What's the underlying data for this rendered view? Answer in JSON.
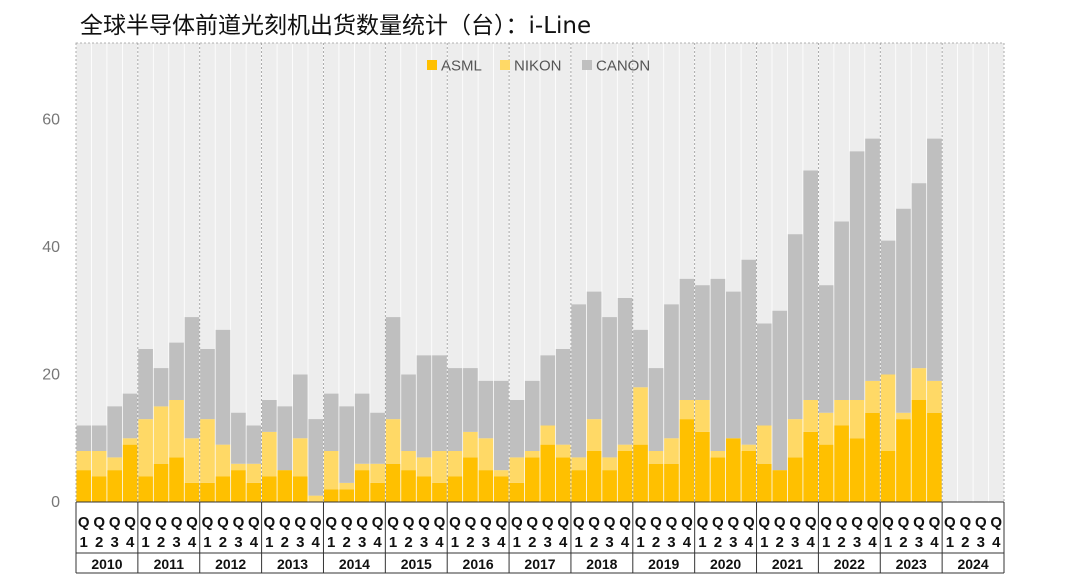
{
  "title": "全球半导体前道光刻机出货数量统计（台）：i-Line",
  "colors": {
    "asml": "#FFC000",
    "nikon": "#FFD966",
    "canon": "#BFBFBF",
    "background_band": "#EDEDED"
  },
  "chart_data": {
    "type": "bar",
    "stacked": true,
    "title": "全球半导体前道光刻机出货数量统计（台）：i-Line",
    "years": [
      "2010",
      "2011",
      "2012",
      "2013",
      "2014",
      "2015",
      "2016",
      "2017",
      "2018",
      "2019",
      "2020",
      "2021",
      "2022",
      "2023",
      "2024"
    ],
    "quarters": [
      "1",
      "2",
      "3",
      "4"
    ],
    "quarter_prefix": "Q",
    "y_ticks": [
      0,
      20,
      40,
      60
    ],
    "ylim": [
      0,
      72
    ],
    "legend": "top-center",
    "grid": false,
    "series": [
      {
        "name": "ASML",
        "color": "#FFC000",
        "values": [
          5,
          4,
          5,
          9,
          4,
          6,
          7,
          3,
          3,
          4,
          5,
          3,
          4,
          5,
          4,
          0,
          2,
          2,
          5,
          3,
          6,
          5,
          4,
          3,
          4,
          7,
          5,
          4,
          3,
          7,
          9,
          7,
          5,
          8,
          5,
          8,
          9,
          6,
          6,
          13,
          11,
          7,
          10,
          8,
          6,
          5,
          7,
          11,
          9,
          12,
          10,
          14,
          8,
          13,
          16,
          14,
          null,
          null,
          null,
          null
        ]
      },
      {
        "name": "NIKON",
        "color": "#FFD966",
        "values": [
          3,
          4,
          2,
          1,
          9,
          9,
          9,
          7,
          10,
          5,
          1,
          3,
          7,
          0,
          6,
          1,
          6,
          1,
          1,
          3,
          7,
          3,
          3,
          5,
          4,
          4,
          5,
          1,
          4,
          1,
          3,
          2,
          2,
          5,
          2,
          1,
          9,
          2,
          4,
          3,
          5,
          1,
          0,
          1,
          6,
          0,
          6,
          5,
          5,
          4,
          6,
          5,
          12,
          1,
          5,
          5,
          null,
          null,
          null,
          null
        ]
      },
      {
        "name": "CANON",
        "color": "#BFBFBF",
        "values": [
          4,
          4,
          8,
          7,
          11,
          6,
          9,
          19,
          11,
          18,
          8,
          6,
          5,
          10,
          10,
          12,
          9,
          12,
          11,
          8,
          16,
          12,
          16,
          15,
          13,
          10,
          9,
          14,
          9,
          11,
          11,
          15,
          24,
          20,
          22,
          23,
          9,
          13,
          21,
          19,
          18,
          27,
          23,
          29,
          16,
          25,
          29,
          36,
          20,
          28,
          39,
          38,
          21,
          32,
          29,
          38,
          null,
          null,
          null,
          null
        ]
      }
    ]
  }
}
